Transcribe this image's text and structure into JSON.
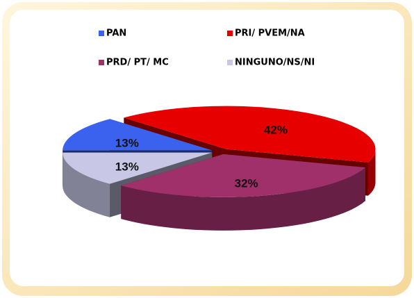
{
  "chart_data": {
    "type": "pie",
    "categories": [
      "PAN",
      "PRI/ PVEM/NA",
      "PRD/ PT/ MC",
      "NINGUNO/NS/NI"
    ],
    "values": [
      13,
      42,
      32,
      13
    ],
    "value_labels": [
      "13%",
      "42%",
      "32%",
      "13%"
    ],
    "colors": [
      "#3a62ee",
      "#e60000",
      "#a0306a",
      "#c8c8e6"
    ]
  }
}
